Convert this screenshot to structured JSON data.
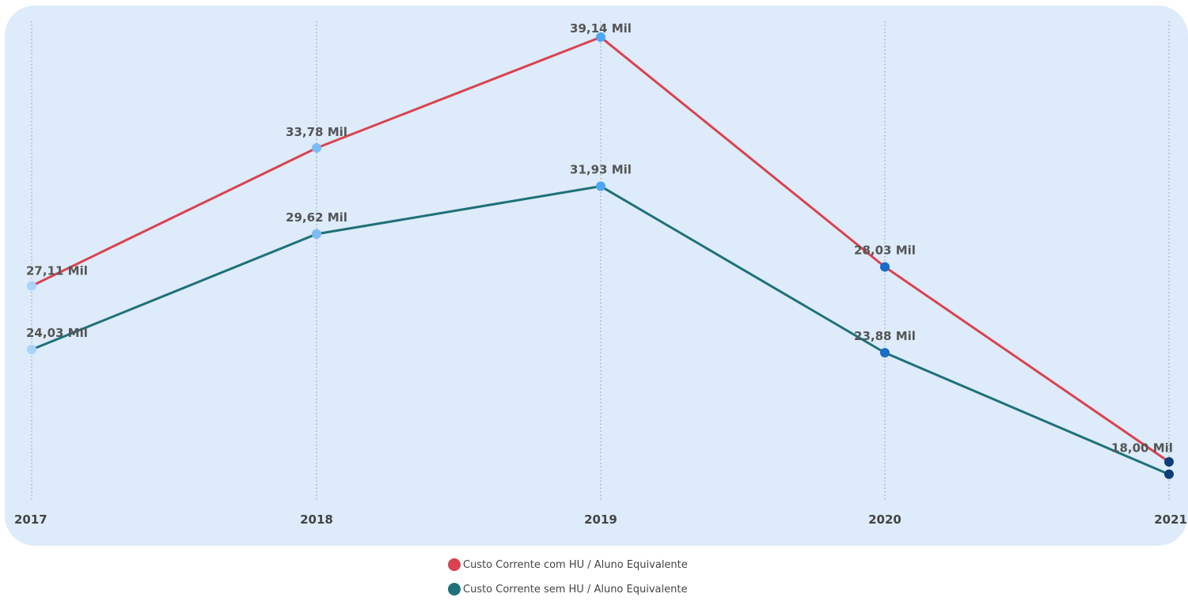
{
  "chart_data": {
    "type": "line",
    "x": [
      "2017",
      "2018",
      "2019",
      "2020",
      "2021"
    ],
    "series": [
      {
        "name": "Custo Corrente com HU / Aluno Equivalente",
        "values": [
          27.11,
          33.78,
          39.14,
          28.03,
          18.6
        ],
        "labels": [
          "27,11 Mil",
          "33,78 Mil",
          "39,14 Mil",
          "28,03 Mil",
          "18,60 Mil"
        ],
        "color": "#d9434f"
      },
      {
        "name": "Custo Corrente sem HU / Aluno Equivalente",
        "values": [
          24.03,
          29.62,
          31.93,
          23.88,
          18.0
        ],
        "labels": [
          "24,03 Mil",
          "29,62 Mil",
          "31,93 Mil",
          "23,88 Mil",
          "18,00 Mil"
        ],
        "color": "#1e7178"
      }
    ],
    "point_colors": [
      "#a9d3fb",
      "#7cbcf5",
      "#4ba6f3",
      "#1a6cc8",
      "#0c3d78"
    ],
    "background_color": "#ddebfa",
    "grid": "vertical-dotted",
    "legend_position": "bottom-center",
    "title": "",
    "xlabel": "",
    "ylabel": ""
  }
}
